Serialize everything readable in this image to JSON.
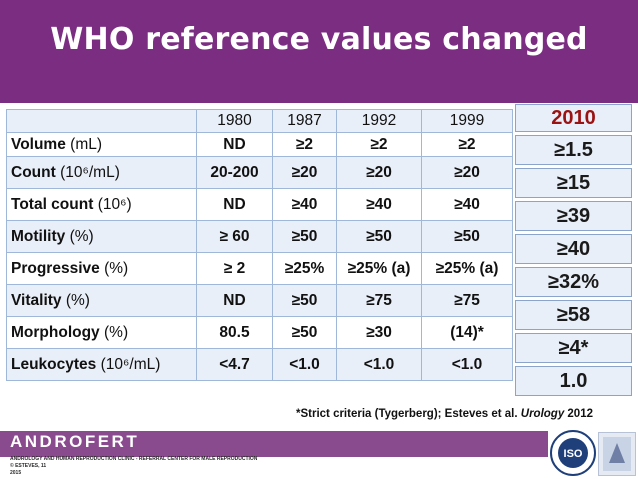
{
  "title": "WHO reference values changed",
  "table": {
    "years": [
      "1980",
      "1987",
      "1992",
      "1999"
    ],
    "rows": [
      {
        "label": "Volume",
        "unit": "(mL)",
        "values": [
          "ND",
          "≥2",
          "≥2",
          "≥2"
        ]
      },
      {
        "label": "Count",
        "unit": "(10⁶/mL)",
        "values": [
          "20-200",
          "≥20",
          "≥20",
          "≥20"
        ]
      },
      {
        "label": "Total count",
        "unit": "(10⁶)",
        "values": [
          "ND",
          "≥40",
          "≥40",
          "≥40"
        ]
      },
      {
        "label": "Motility",
        "unit": "(%)",
        "values": [
          "≥ 60",
          "≥50",
          "≥50",
          "≥50"
        ]
      },
      {
        "label": "Progressive",
        "unit": "(%)",
        "values": [
          "≥ 2",
          "≥25%",
          "≥25% (a)",
          "≥25% (a)"
        ]
      },
      {
        "label": "Vitality",
        "unit": "(%)",
        "values": [
          "ND",
          "≥50",
          "≥75",
          "≥75"
        ]
      },
      {
        "label": "Morphology",
        "unit": "(%)",
        "values": [
          "80.5",
          "≥50",
          "≥30",
          "(14)*"
        ]
      },
      {
        "label": "Leukocytes",
        "unit": "(10⁶/mL)",
        "values": [
          "<4.7",
          "<1.0",
          "<1.0",
          "<1.0"
        ]
      }
    ]
  },
  "col2010": {
    "year": "2010",
    "values": [
      "≥1.5",
      "≥15",
      "≥39",
      "≥40",
      "≥32%",
      "≥58",
      "≥4*",
      "1.0"
    ]
  },
  "footnote": {
    "text": "*Strict criteria (Tygerberg); Esteves et al. ",
    "journal": "Urology",
    "year": " 2012"
  },
  "footer": {
    "brand": "ANDROFERT",
    "line1": "ANDROLOGY AND HUMAN REPRODUCTION CLINIC - REFERRAL CENTER FOR MALE REPRODUCTION",
    "line2": "© ESTEVES, 11",
    "line3": "2015",
    "logo_text": "ISO"
  },
  "colors": {
    "title_bg": "#7b2d82",
    "footer_bg": "#8a4a8e",
    "year_2010": "#9a1212",
    "cell_border": "#9fb7d9"
  }
}
